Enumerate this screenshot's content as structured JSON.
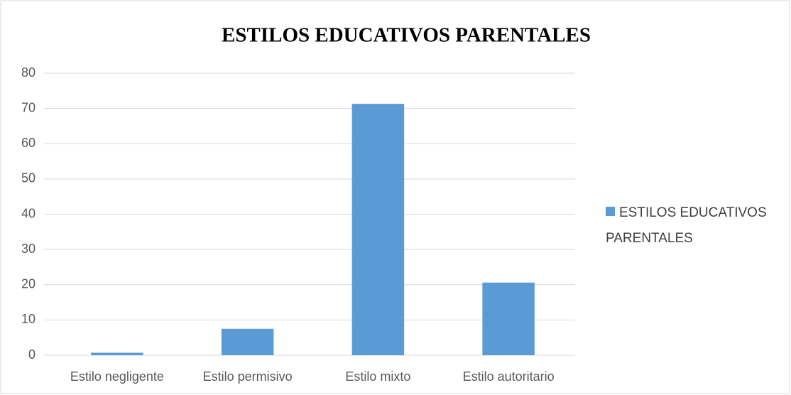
{
  "chart_data": {
    "type": "bar",
    "title": "ESTILOS EDUCATIVOS PARENTALES",
    "categories": [
      "Estilo negligente",
      "Estilo permisivo",
      "Estilo mixto",
      "Estilo autoritario"
    ],
    "series": [
      {
        "name": "ESTILOS EDUCATIVOS PARENTALES",
        "color": "#5b9bd5",
        "values": [
          0.7,
          7.5,
          71.3,
          20.6
        ]
      }
    ],
    "ylim": [
      0,
      80
    ],
    "yticks": [
      0,
      10,
      20,
      30,
      40,
      50,
      60,
      70,
      80
    ],
    "grid": true,
    "legend": "right"
  }
}
